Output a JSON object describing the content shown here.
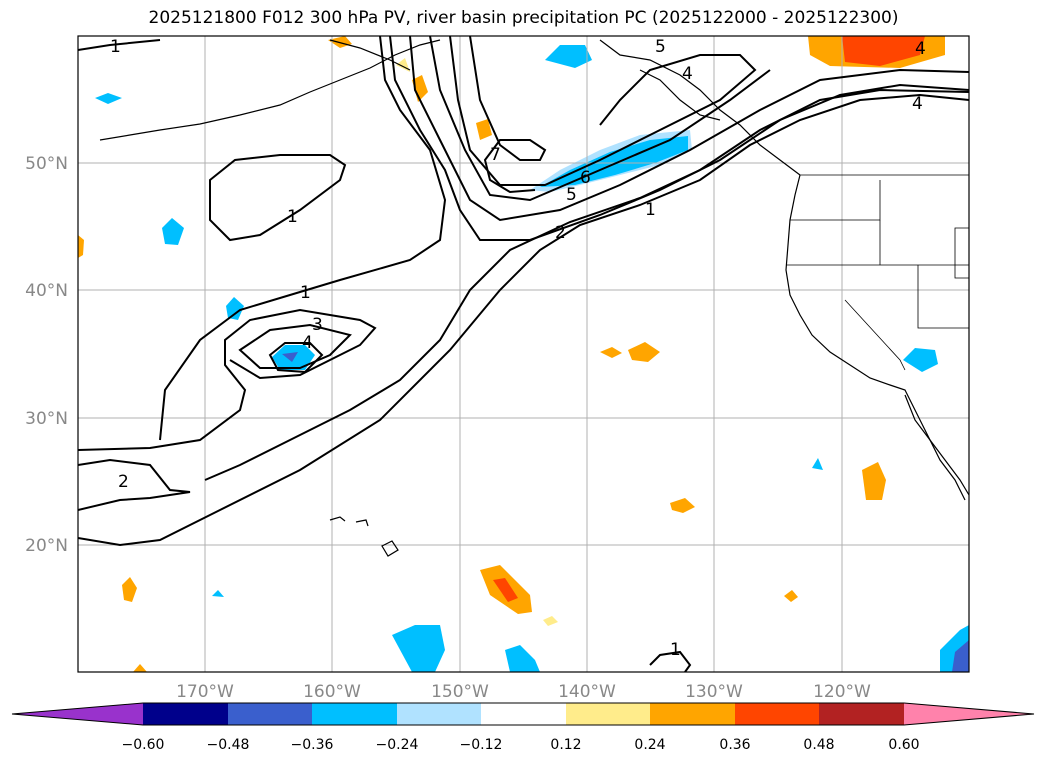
{
  "title": "2025121800 F012 300 hPa PV, river basin precipitation PC (2025122000 - 2025122300)",
  "lat_labels": [
    "50°N",
    "40°N",
    "30°N",
    "20°N"
  ],
  "lon_labels": [
    "170°W",
    "160°W",
    "150°W",
    "140°W",
    "130°W",
    "120°W"
  ],
  "pv_contour_labels": [
    "1",
    "1",
    "1",
    "1",
    "2",
    "2",
    "3",
    "4",
    "4",
    "4",
    "4",
    "5",
    "5",
    "6",
    "7",
    "1"
  ],
  "colorbar": {
    "ticks": [
      "−0.60",
      "−0.48",
      "−0.36",
      "−0.24",
      "−0.12",
      "0.12",
      "0.24",
      "0.36",
      "0.48",
      "0.60"
    ],
    "colors": [
      "#9932cc",
      "#00008b",
      "#3a5fcd",
      "#00bfff",
      "#b0e2ff",
      "#ffffff",
      "#ffec8b",
      "#ffa500",
      "#ff4500",
      "#b22222",
      "#ff82ab"
    ]
  },
  "colors": {
    "contour": "#000000",
    "grid": "#b0b0b0",
    "coast": "#000000"
  }
}
